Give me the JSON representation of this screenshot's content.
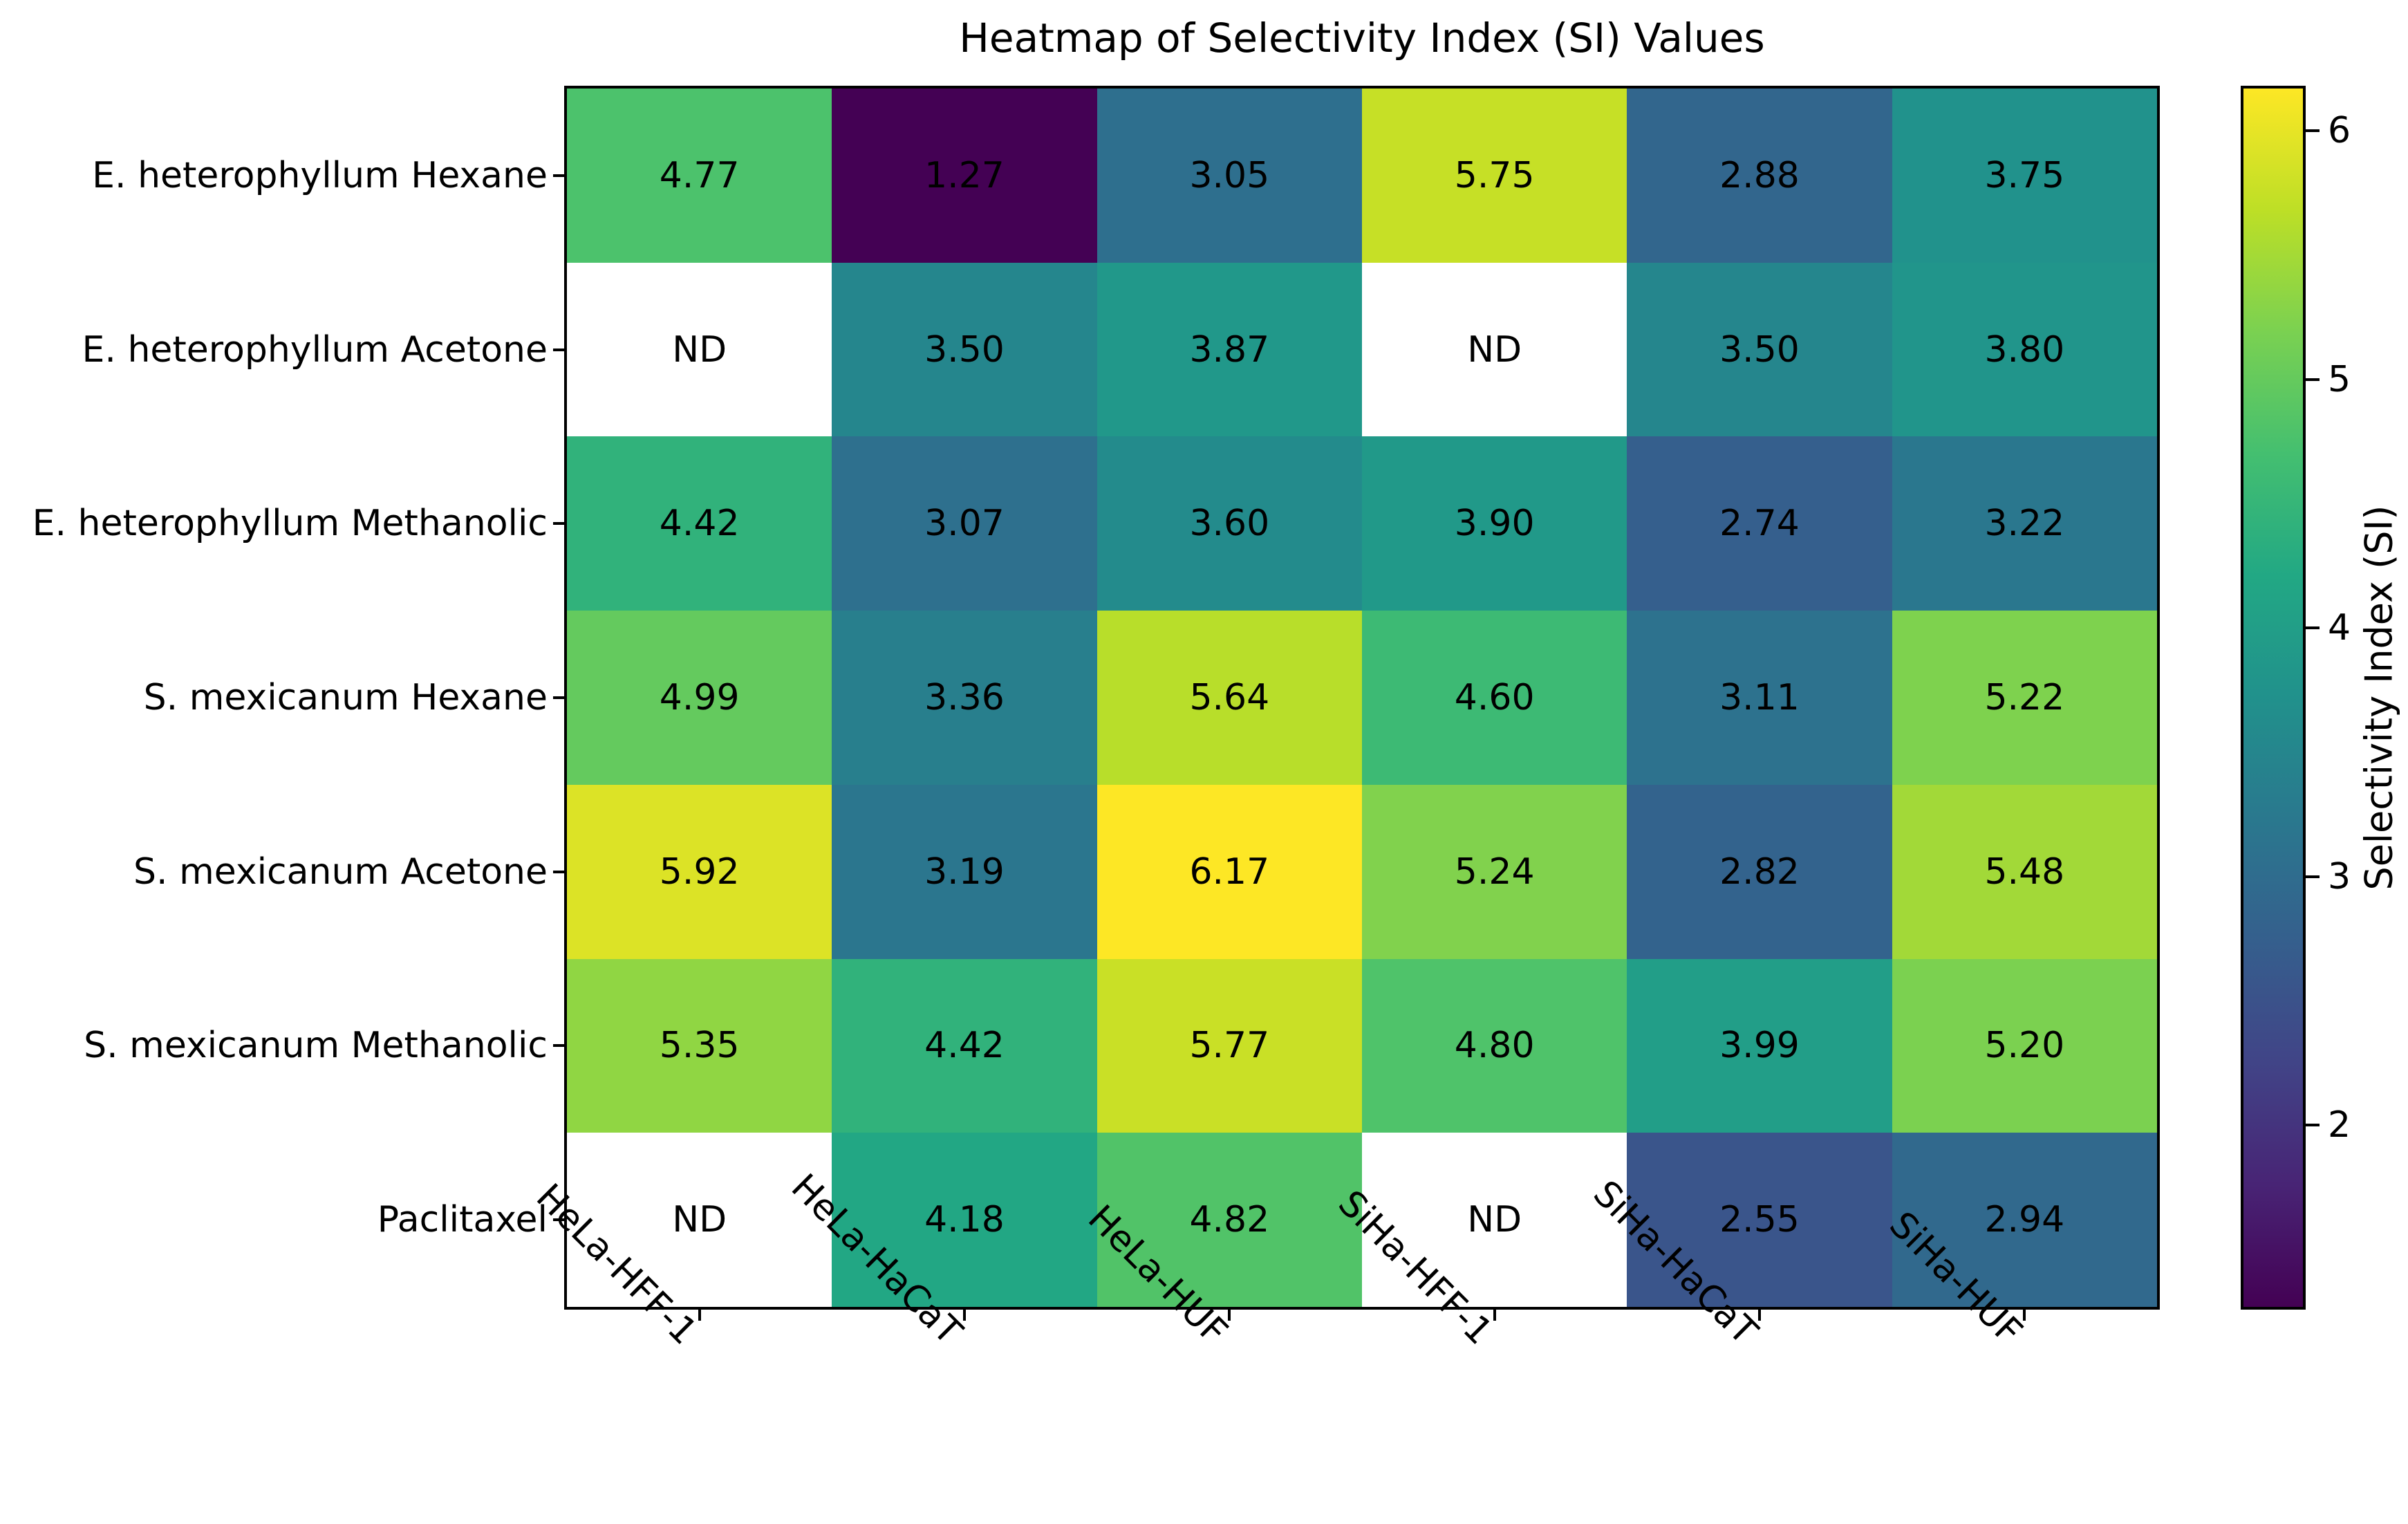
{
  "figure": {
    "background": "#ffffff",
    "text_color": "#000000"
  },
  "chart_data": {
    "type": "heatmap",
    "title": "Heatmap of Selectivity Index (SI) Values",
    "x_categories": [
      "HeLa-HFF-1",
      "HeLa-HaCaT",
      "HeLa-HUF",
      "SiHa-HFF-1",
      "SiHa-HaCaT",
      "SiHa-HUF"
    ],
    "y_categories": [
      "E. heterophyllum Hexane",
      "E. heterophyllum Acetone",
      "E. heterophyllum Methanolic",
      "S. mexicanum Hexane",
      "S. mexicanum Acetone",
      "S. mexicanum Methanolic",
      "Paclitaxel"
    ],
    "values": [
      [
        4.77,
        1.27,
        3.05,
        5.75,
        2.88,
        3.75
      ],
      [
        null,
        3.5,
        3.87,
        null,
        3.5,
        3.8
      ],
      [
        4.42,
        3.07,
        3.6,
        3.9,
        2.74,
        3.22
      ],
      [
        4.99,
        3.36,
        5.64,
        4.6,
        3.11,
        5.22
      ],
      [
        5.92,
        3.19,
        6.17,
        5.24,
        2.82,
        5.48
      ],
      [
        5.35,
        4.42,
        5.77,
        4.8,
        3.99,
        5.2
      ],
      [
        null,
        4.18,
        4.82,
        null,
        2.55,
        2.94
      ]
    ],
    "cell_labels": [
      [
        "4.77",
        "1.27",
        "3.05",
        "5.75",
        "2.88",
        "3.75"
      ],
      [
        "ND",
        "3.50",
        "3.87",
        "ND",
        "3.50",
        "3.80"
      ],
      [
        "4.42",
        "3.07",
        "3.60",
        "3.90",
        "2.74",
        "3.22"
      ],
      [
        "4.99",
        "3.36",
        "5.64",
        "4.60",
        "3.11",
        "5.22"
      ],
      [
        "5.92",
        "3.19",
        "6.17",
        "5.24",
        "2.82",
        "5.48"
      ],
      [
        "5.35",
        "4.42",
        "5.77",
        "4.80",
        "3.99",
        "5.20"
      ],
      [
        "ND",
        "4.18",
        "4.82",
        "ND",
        "2.55",
        "2.94"
      ]
    ],
    "missing_label": "ND",
    "missing_color": "#ffffff",
    "annotation_color": "#000000",
    "colormap": "viridis",
    "vmin": 1.27,
    "vmax": 6.17,
    "grid": false,
    "colorbar": {
      "label": "Selectivity Index (SI)",
      "ticks": [
        2,
        3,
        4,
        5,
        6
      ],
      "position": "right"
    }
  }
}
